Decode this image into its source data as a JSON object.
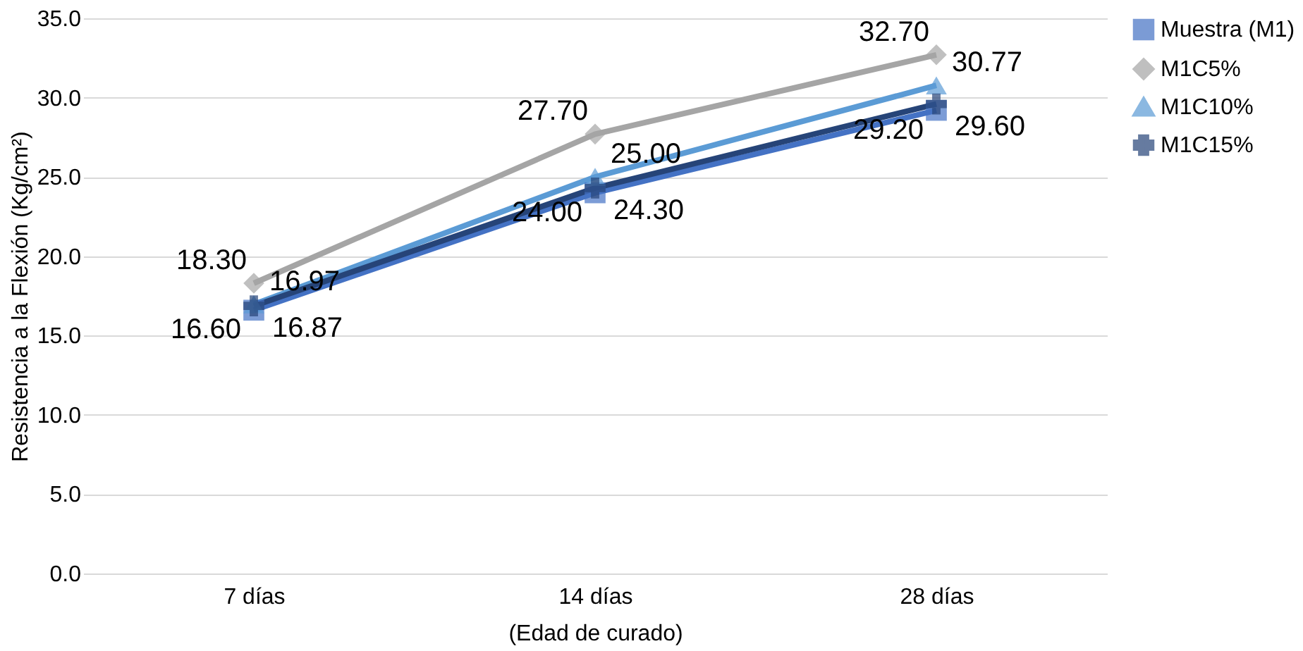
{
  "chart_data": {
    "type": "line",
    "xlabel": "(Edad de curado)",
    "ylabel": "Resistencia a la Flexión (Kg/cm²)",
    "categories": [
      "7 días",
      "14 días",
      "28 días"
    ],
    "series": [
      {
        "name": "Muestra (M1)",
        "color": "#4472c4",
        "marker": "square",
        "values": [
          16.6,
          24.0,
          29.2
        ],
        "value_labels": [
          "16.60",
          "24.00",
          "29.20"
        ]
      },
      {
        "name": "M1C5%",
        "color": "#a5a5a5",
        "marker": "diamond",
        "values": [
          18.3,
          27.7,
          32.7
        ],
        "value_labels": [
          "18.30",
          "27.70",
          "32.70"
        ]
      },
      {
        "name": "M1C10%",
        "color": "#5b9bd5",
        "marker": "triangle",
        "values": [
          16.97,
          25.0,
          30.77
        ],
        "value_labels": [
          "16.97",
          "25.00",
          "30.77"
        ]
      },
      {
        "name": "M1C15%",
        "color": "#264478",
        "marker": "cross",
        "values": [
          16.87,
          24.3,
          29.6
        ],
        "value_labels": [
          "16.87",
          "24.30",
          "29.60"
        ]
      }
    ],
    "ylim": [
      0,
      35
    ],
    "yticks": [
      {
        "value": 0,
        "label": "0.0"
      },
      {
        "value": 5,
        "label": "5.0"
      },
      {
        "value": 10,
        "label": "10.0"
      },
      {
        "value": 15,
        "label": "15.0"
      },
      {
        "value": 20,
        "label": "20.0"
      },
      {
        "value": 25,
        "label": "25.0"
      },
      {
        "value": 30,
        "label": "30.0"
      },
      {
        "value": 35,
        "label": "35.0"
      }
    ],
    "grid": "y",
    "legend": "right"
  }
}
